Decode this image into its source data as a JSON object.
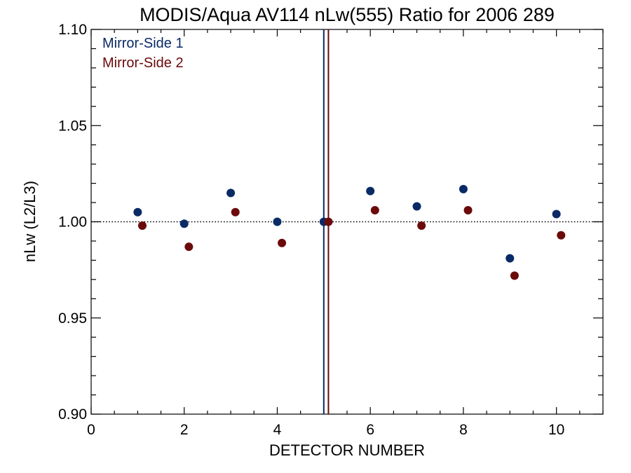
{
  "chart_data": {
    "type": "scatter",
    "title": "MODIS/Aqua AV114 nLw(555) Ratio for 2006 289",
    "xlabel": "DETECTOR NUMBER",
    "ylabel": "nLw (L2/L3)",
    "xlim": [
      0,
      11
    ],
    "ylim": [
      0.9,
      1.1
    ],
    "x_ticks": [
      0,
      2,
      4,
      6,
      8,
      10
    ],
    "x_tick_labels": [
      "0",
      "2",
      "4",
      "6",
      "8",
      "10"
    ],
    "y_ticks": [
      0.9,
      0.95,
      1.0,
      1.05,
      1.1
    ],
    "y_tick_labels": [
      "0.90",
      "0.95",
      "1.00",
      "1.05",
      "1.10"
    ],
    "legend_position": "top-left",
    "reference_line": {
      "y": 1.0,
      "style": "dotted",
      "color": "#000000"
    },
    "vertical_lines": [
      {
        "x": 5.0,
        "color": "#0a2a66"
      },
      {
        "x": 5.1,
        "color": "#6b0a0a"
      }
    ],
    "series": [
      {
        "name": "Mirror-Side 1",
        "color": "#0a2a66",
        "x": [
          1,
          2,
          3,
          4,
          5,
          6,
          7,
          8,
          9,
          10
        ],
        "y": [
          1.005,
          0.999,
          1.015,
          1.0,
          1.0,
          1.016,
          1.008,
          1.017,
          0.981,
          1.004
        ]
      },
      {
        "name": "Mirror-Side 2",
        "color": "#6b0a0a",
        "x": [
          1.1,
          2.1,
          3.1,
          4.1,
          5.1,
          6.1,
          7.1,
          8.1,
          9.1,
          10.1
        ],
        "y": [
          0.998,
          0.987,
          1.005,
          0.989,
          1.0,
          1.006,
          0.998,
          1.006,
          0.972,
          0.993
        ]
      }
    ]
  }
}
